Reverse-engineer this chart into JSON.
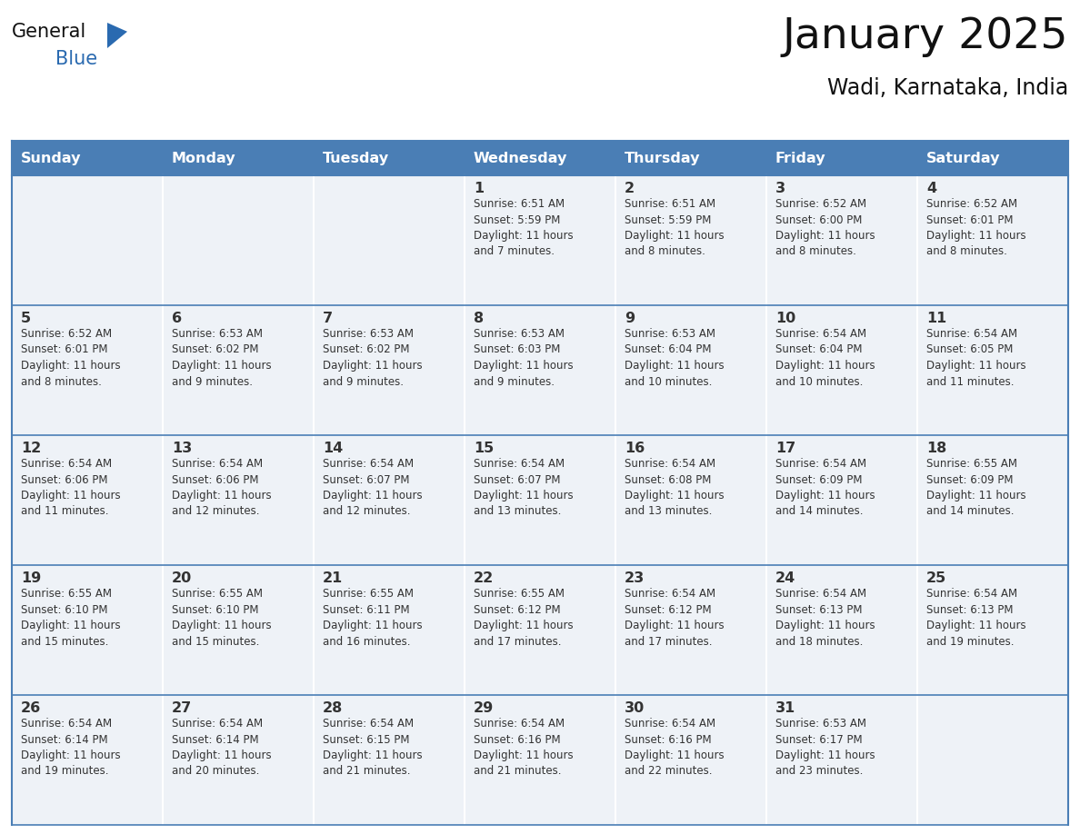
{
  "title": "January 2025",
  "subtitle": "Wadi, Karnataka, India",
  "header_bg": "#4a7eb5",
  "header_text_color": "#ffffff",
  "cell_bg": "#eef2f7",
  "cell_bg_empty": "#eef2f7",
  "border_color": "#4a7eb5",
  "row_divider_color": "#4a7eb5",
  "day_headers": [
    "Sunday",
    "Monday",
    "Tuesday",
    "Wednesday",
    "Thursday",
    "Friday",
    "Saturday"
  ],
  "title_color": "#111111",
  "subtitle_color": "#111111",
  "day_num_color": "#333333",
  "text_color": "#333333",
  "logo_general_color": "#111111",
  "logo_blue_color": "#2a6ab0",
  "weeks": [
    [
      {
        "day": "",
        "info": ""
      },
      {
        "day": "",
        "info": ""
      },
      {
        "day": "",
        "info": ""
      },
      {
        "day": "1",
        "info": "Sunrise: 6:51 AM\nSunset: 5:59 PM\nDaylight: 11 hours\nand 7 minutes."
      },
      {
        "day": "2",
        "info": "Sunrise: 6:51 AM\nSunset: 5:59 PM\nDaylight: 11 hours\nand 8 minutes."
      },
      {
        "day": "3",
        "info": "Sunrise: 6:52 AM\nSunset: 6:00 PM\nDaylight: 11 hours\nand 8 minutes."
      },
      {
        "day": "4",
        "info": "Sunrise: 6:52 AM\nSunset: 6:01 PM\nDaylight: 11 hours\nand 8 minutes."
      }
    ],
    [
      {
        "day": "5",
        "info": "Sunrise: 6:52 AM\nSunset: 6:01 PM\nDaylight: 11 hours\nand 8 minutes."
      },
      {
        "day": "6",
        "info": "Sunrise: 6:53 AM\nSunset: 6:02 PM\nDaylight: 11 hours\nand 9 minutes."
      },
      {
        "day": "7",
        "info": "Sunrise: 6:53 AM\nSunset: 6:02 PM\nDaylight: 11 hours\nand 9 minutes."
      },
      {
        "day": "8",
        "info": "Sunrise: 6:53 AM\nSunset: 6:03 PM\nDaylight: 11 hours\nand 9 minutes."
      },
      {
        "day": "9",
        "info": "Sunrise: 6:53 AM\nSunset: 6:04 PM\nDaylight: 11 hours\nand 10 minutes."
      },
      {
        "day": "10",
        "info": "Sunrise: 6:54 AM\nSunset: 6:04 PM\nDaylight: 11 hours\nand 10 minutes."
      },
      {
        "day": "11",
        "info": "Sunrise: 6:54 AM\nSunset: 6:05 PM\nDaylight: 11 hours\nand 11 minutes."
      }
    ],
    [
      {
        "day": "12",
        "info": "Sunrise: 6:54 AM\nSunset: 6:06 PM\nDaylight: 11 hours\nand 11 minutes."
      },
      {
        "day": "13",
        "info": "Sunrise: 6:54 AM\nSunset: 6:06 PM\nDaylight: 11 hours\nand 12 minutes."
      },
      {
        "day": "14",
        "info": "Sunrise: 6:54 AM\nSunset: 6:07 PM\nDaylight: 11 hours\nand 12 minutes."
      },
      {
        "day": "15",
        "info": "Sunrise: 6:54 AM\nSunset: 6:07 PM\nDaylight: 11 hours\nand 13 minutes."
      },
      {
        "day": "16",
        "info": "Sunrise: 6:54 AM\nSunset: 6:08 PM\nDaylight: 11 hours\nand 13 minutes."
      },
      {
        "day": "17",
        "info": "Sunrise: 6:54 AM\nSunset: 6:09 PM\nDaylight: 11 hours\nand 14 minutes."
      },
      {
        "day": "18",
        "info": "Sunrise: 6:55 AM\nSunset: 6:09 PM\nDaylight: 11 hours\nand 14 minutes."
      }
    ],
    [
      {
        "day": "19",
        "info": "Sunrise: 6:55 AM\nSunset: 6:10 PM\nDaylight: 11 hours\nand 15 minutes."
      },
      {
        "day": "20",
        "info": "Sunrise: 6:55 AM\nSunset: 6:10 PM\nDaylight: 11 hours\nand 15 minutes."
      },
      {
        "day": "21",
        "info": "Sunrise: 6:55 AM\nSunset: 6:11 PM\nDaylight: 11 hours\nand 16 minutes."
      },
      {
        "day": "22",
        "info": "Sunrise: 6:55 AM\nSunset: 6:12 PM\nDaylight: 11 hours\nand 17 minutes."
      },
      {
        "day": "23",
        "info": "Sunrise: 6:54 AM\nSunset: 6:12 PM\nDaylight: 11 hours\nand 17 minutes."
      },
      {
        "day": "24",
        "info": "Sunrise: 6:54 AM\nSunset: 6:13 PM\nDaylight: 11 hours\nand 18 minutes."
      },
      {
        "day": "25",
        "info": "Sunrise: 6:54 AM\nSunset: 6:13 PM\nDaylight: 11 hours\nand 19 minutes."
      }
    ],
    [
      {
        "day": "26",
        "info": "Sunrise: 6:54 AM\nSunset: 6:14 PM\nDaylight: 11 hours\nand 19 minutes."
      },
      {
        "day": "27",
        "info": "Sunrise: 6:54 AM\nSunset: 6:14 PM\nDaylight: 11 hours\nand 20 minutes."
      },
      {
        "day": "28",
        "info": "Sunrise: 6:54 AM\nSunset: 6:15 PM\nDaylight: 11 hours\nand 21 minutes."
      },
      {
        "day": "29",
        "info": "Sunrise: 6:54 AM\nSunset: 6:16 PM\nDaylight: 11 hours\nand 21 minutes."
      },
      {
        "day": "30",
        "info": "Sunrise: 6:54 AM\nSunset: 6:16 PM\nDaylight: 11 hours\nand 22 minutes."
      },
      {
        "day": "31",
        "info": "Sunrise: 6:53 AM\nSunset: 6:17 PM\nDaylight: 11 hours\nand 23 minutes."
      },
      {
        "day": "",
        "info": ""
      }
    ]
  ]
}
